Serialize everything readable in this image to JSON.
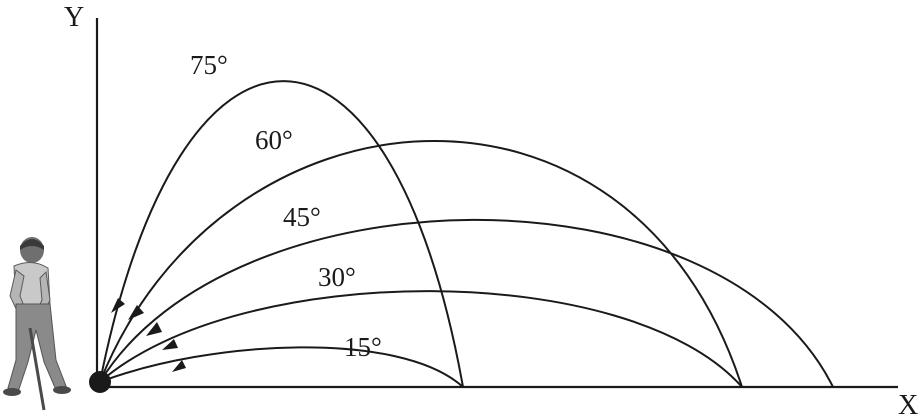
{
  "axes": {
    "x_label": "X",
    "y_label": "Y"
  },
  "trajectories": [
    {
      "id": "75",
      "angle_deg": 75,
      "label": "75°",
      "range_rel": 0.5,
      "peak_rel": 0.93
    },
    {
      "id": "60",
      "angle_deg": 60,
      "label": "60°",
      "range_rel": 0.866,
      "peak_rel": 0.75
    },
    {
      "id": "45",
      "angle_deg": 45,
      "label": "45°",
      "range_rel": 1.0,
      "peak_rel": 0.5
    },
    {
      "id": "30",
      "angle_deg": 30,
      "label": "30°",
      "range_rel": 0.866,
      "peak_rel": 0.25
    },
    {
      "id": "15",
      "angle_deg": 15,
      "label": "15°",
      "range_rel": 0.5,
      "peak_rel": 0.067
    }
  ],
  "colors": {
    "ink": "#1a1a1a",
    "figure_gray": "#8a8a8a"
  }
}
